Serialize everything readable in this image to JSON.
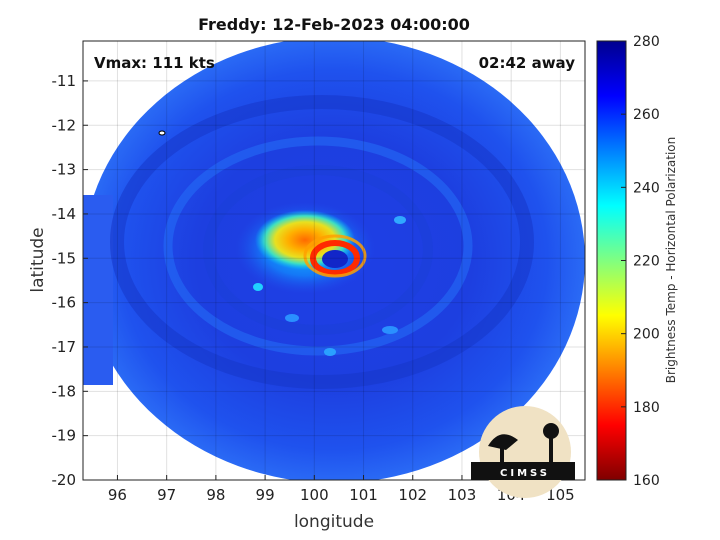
{
  "title": "Freddy: 12-Feb-2023 04:00:00",
  "vmax_label": "Vmax: 111 kts",
  "time_away_label": "02:42 away",
  "logo_text": "CIMSS",
  "colors": {
    "background_outside_swath": "#ffffff",
    "colormap": [
      "#7f0000",
      "#ff0000",
      "#ff8000",
      "#ffff00",
      "#80ff80",
      "#00ffff",
      "#0080ff",
      "#0000ff",
      "#00008f"
    ]
  },
  "chart_data": {
    "type": "heatmap",
    "title": "Freddy: 12-Feb-2023 04:00:00",
    "xlabel": "longitude",
    "ylabel": "latitude",
    "xlim": [
      95.3,
      105.5
    ],
    "ylim": [
      -20,
      -10.1
    ],
    "xticks": [
      96,
      97,
      98,
      99,
      100,
      101,
      102,
      103,
      104,
      105
    ],
    "yticks": [
      -20,
      -19,
      -18,
      -17,
      -16,
      -15,
      -14,
      -13,
      -12,
      -11
    ],
    "grid": true,
    "colorbar": {
      "label": "Brightness Temp - Horizontal Polarization",
      "range": [
        160,
        280
      ],
      "ticks": [
        160,
        180,
        200,
        220,
        240,
        260,
        280
      ]
    },
    "swath": {
      "center": [
        100.1,
        -15.2
      ],
      "background_value": 262
    },
    "features": [
      {
        "name": "eye",
        "lon": 100.4,
        "lat": -15.0,
        "value": 270
      },
      {
        "name": "eyewall",
        "lon": 100.3,
        "lat": -14.9,
        "value": 190
      },
      {
        "name": "convective core",
        "lon": 99.9,
        "lat": -14.4,
        "value": 200
      },
      {
        "name": "outer ring",
        "lon": 100.1,
        "lat": -14.7,
        "value": 238
      }
    ]
  }
}
